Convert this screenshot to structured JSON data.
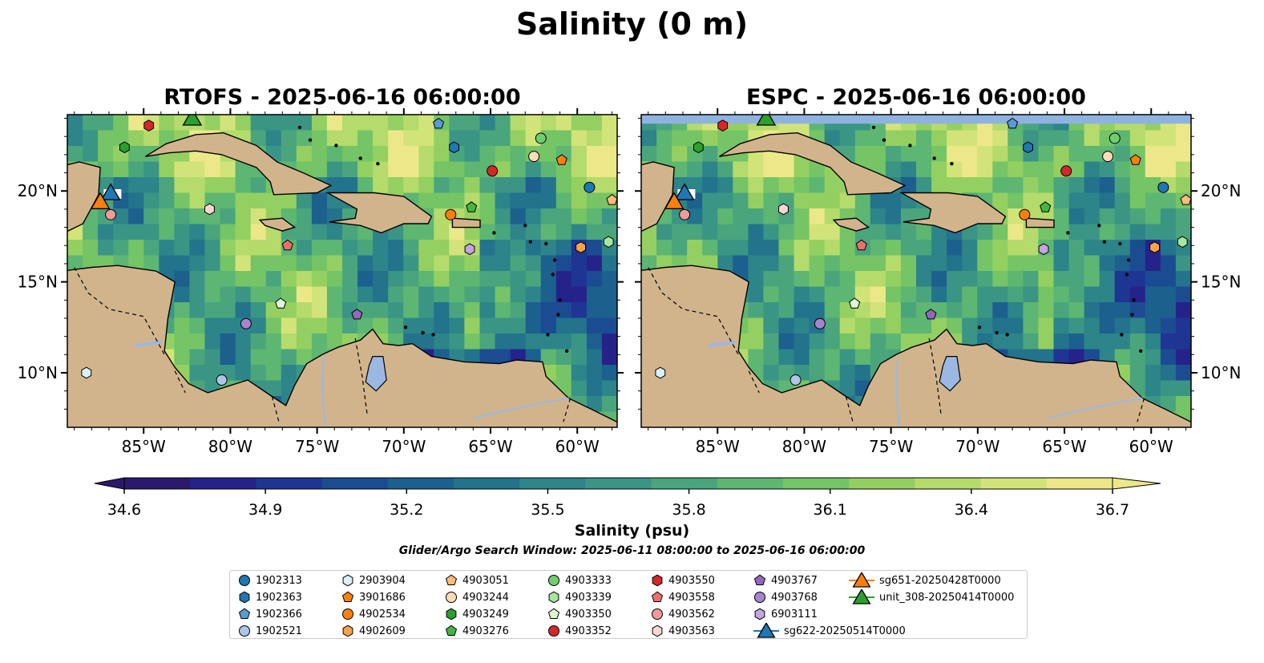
{
  "title": "Salinity (0 m)",
  "panels": [
    {
      "title": "RTOFS - 2025-06-16 06:00:00"
    },
    {
      "title": "ESPC - 2025-06-16 06:00:00"
    }
  ],
  "chart_data": {
    "type": "heatmap",
    "title": "Salinity (0 m)",
    "projection_extent": {
      "lon": [
        -89.4,
        -57.7
      ],
      "lat": [
        7.0,
        24.2
      ]
    },
    "x_ticks": [
      "85°W",
      "80°W",
      "75°W",
      "70°W",
      "65°W",
      "60°W"
    ],
    "x_tick_values": [
      -85,
      -80,
      -75,
      -70,
      -65,
      -60
    ],
    "y_ticks": [
      "10°N",
      "15°N",
      "20°N"
    ],
    "y_tick_values": [
      10,
      15,
      20
    ],
    "colorbar": {
      "label": "Salinity (psu)",
      "range": [
        34.6,
        36.7
      ],
      "ticks": [
        "34.6",
        "34.9",
        "35.2",
        "35.5",
        "35.8",
        "36.1",
        "36.4",
        "36.7"
      ],
      "tick_values": [
        34.6,
        34.9,
        35.2,
        35.5,
        35.8,
        36.1,
        36.4,
        36.7
      ],
      "colormap": [
        "#2b1a6b",
        "#25238a",
        "#1f3593",
        "#1b4c92",
        "#1c608e",
        "#22738b",
        "#2d8489",
        "#3a9585",
        "#4aa57d",
        "#5db672",
        "#75c466",
        "#94d061",
        "#b4db6b",
        "#d2e479",
        "#ece88a"
      ],
      "extend": "both"
    },
    "land_color": "#d2b48c",
    "inland_water_color": "#9bb8e3",
    "search_window": "Glider/Argo Search Window: 2025-06-11 08:00:00 to 2025-06-16 06:00:00",
    "series": [
      {
        "name": "1902313",
        "marker": "circle",
        "color": "#1f77b4",
        "lon": -59.3,
        "lat": 20.2
      },
      {
        "name": "1902363",
        "marker": "hexagon",
        "color": "#1f77b4",
        "lon": -67.1,
        "lat": 22.4
      },
      {
        "name": "1902366",
        "marker": "pentagon",
        "color": "#5b9bd5",
        "lon": -68.0,
        "lat": 23.7
      },
      {
        "name": "1902521",
        "marker": "circle",
        "color": "#aec7e8",
        "lon": -80.5,
        "lat": 9.6
      },
      {
        "name": "2903904",
        "marker": "hexagon",
        "color": "#d9f2fb",
        "lon": -88.3,
        "lat": 10.0
      },
      {
        "name": "3901686",
        "marker": "pentagon",
        "color": "#ff7f0e",
        "lon": -60.9,
        "lat": 21.7
      },
      {
        "name": "4902534",
        "marker": "circle",
        "color": "#ff7f0e",
        "lon": -67.3,
        "lat": 18.7
      },
      {
        "name": "4902609",
        "marker": "hexagon",
        "color": "#ffa24a",
        "lon": -59.8,
        "lat": 16.9
      },
      {
        "name": "4903051",
        "marker": "pentagon",
        "color": "#ffbb78",
        "lon": -58.0,
        "lat": 19.5
      },
      {
        "name": "4903244",
        "marker": "circle",
        "color": "#ffdcb8",
        "lon": -62.5,
        "lat": 21.9
      },
      {
        "name": "4903249",
        "marker": "hexagon",
        "color": "#2ca02c",
        "lon": -86.1,
        "lat": 22.4
      },
      {
        "name": "4903276",
        "marker": "pentagon",
        "color": "#44b544",
        "lon": -66.1,
        "lat": 19.1
      },
      {
        "name": "4903333",
        "marker": "circle",
        "color": "#6fcf6f",
        "lon": -62.1,
        "lat": 22.9
      },
      {
        "name": "4903339",
        "marker": "hexagon",
        "color": "#a6e6a0",
        "lon": -58.2,
        "lat": 17.2
      },
      {
        "name": "4903350",
        "marker": "pentagon",
        "color": "#dbf7d5",
        "lon": -77.1,
        "lat": 13.8
      },
      {
        "name": "4903352",
        "marker": "circle",
        "color": "#d62728",
        "lon": -64.9,
        "lat": 21.1
      },
      {
        "name": "4903550",
        "marker": "hexagon",
        "color": "#d62728",
        "lon": -84.7,
        "lat": 23.6
      },
      {
        "name": "4903558",
        "marker": "pentagon",
        "color": "#ef6f70",
        "lon": -76.7,
        "lat": 17.0
      },
      {
        "name": "4903562",
        "marker": "circle",
        "color": "#f29a9a",
        "lon": -86.9,
        "lat": 18.7
      },
      {
        "name": "4903563",
        "marker": "hexagon",
        "color": "#fdd6d2",
        "lon": -81.2,
        "lat": 19.0
      },
      {
        "name": "4903767",
        "marker": "pentagon",
        "color": "#9467bd",
        "lon": -72.7,
        "lat": 13.2
      },
      {
        "name": "4903768",
        "marker": "circle",
        "color": "#a884d0",
        "lon": -79.1,
        "lat": 12.7
      },
      {
        "name": "6903111",
        "marker": "hexagon",
        "color": "#c3a5e2",
        "lon": -66.2,
        "lat": 16.8
      },
      {
        "name": "sg622-20250514T0000",
        "marker": "triangle",
        "color": "#1f77b4",
        "lon": -86.9,
        "lat": 19.9
      },
      {
        "name": "sg651-20250428T0000",
        "marker": "triangle",
        "color": "#ff7f0e",
        "lon": -87.5,
        "lat": 19.4
      },
      {
        "name": "unit_308-20250414T0000",
        "marker": "triangle",
        "color": "#2ca02c",
        "lon": -82.2,
        "lat": 24.0
      }
    ],
    "legend_placement": "bottom-center"
  }
}
